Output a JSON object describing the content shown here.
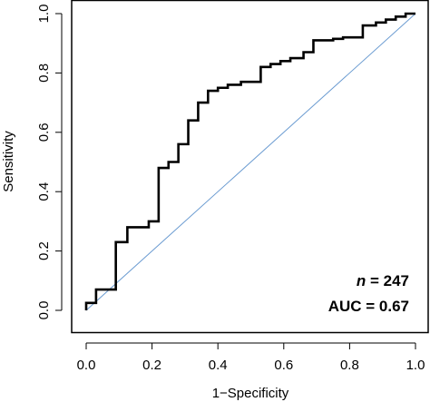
{
  "chart_data": {
    "type": "line",
    "title": "",
    "xlabel": "1−Specificity",
    "ylabel": "Sensitivity",
    "xlim": [
      0,
      1
    ],
    "ylim": [
      0,
      1
    ],
    "x_ticks": [
      0.0,
      0.2,
      0.4,
      0.6,
      0.8,
      1.0
    ],
    "x_tick_labels": [
      "0.0",
      "0.2",
      "0.4",
      "0.6",
      "0.8",
      "1.0"
    ],
    "y_ticks": [
      0.0,
      0.2,
      0.4,
      0.6,
      0.8,
      1.0
    ],
    "y_tick_labels": [
      "0.0",
      "0.2",
      "0.4",
      "0.6",
      "0.8",
      "1.0"
    ],
    "grid": false,
    "series": [
      {
        "color": "#000000",
        "x": [
          0.0,
          0.0,
          0.03,
          0.03,
          0.09,
          0.09,
          0.125,
          0.125,
          0.19,
          0.19,
          0.22,
          0.22,
          0.25,
          0.25,
          0.28,
          0.28,
          0.31,
          0.31,
          0.34,
          0.34,
          0.37,
          0.37,
          0.4,
          0.4,
          0.43,
          0.43,
          0.47,
          0.47,
          0.53,
          0.53,
          0.56,
          0.56,
          0.59,
          0.59,
          0.62,
          0.62,
          0.66,
          0.66,
          0.69,
          0.69,
          0.75,
          0.75,
          0.78,
          0.78,
          0.84,
          0.84,
          0.88,
          0.88,
          0.91,
          0.91,
          0.94,
          0.94,
          0.97,
          0.97,
          1.0
        ],
        "y": [
          0.0,
          0.025,
          0.025,
          0.07,
          0.07,
          0.23,
          0.23,
          0.28,
          0.28,
          0.3,
          0.3,
          0.48,
          0.48,
          0.5,
          0.5,
          0.56,
          0.56,
          0.64,
          0.64,
          0.7,
          0.7,
          0.74,
          0.74,
          0.75,
          0.75,
          0.76,
          0.76,
          0.77,
          0.77,
          0.82,
          0.82,
          0.83,
          0.83,
          0.84,
          0.84,
          0.85,
          0.85,
          0.87,
          0.87,
          0.91,
          0.91,
          0.915,
          0.915,
          0.92,
          0.92,
          0.96,
          0.96,
          0.97,
          0.97,
          0.98,
          0.98,
          0.99,
          0.99,
          1.0,
          1.0
        ]
      },
      {
        "color": "#6a9bd1",
        "x": [
          0,
          1
        ],
        "y": [
          0,
          1
        ]
      }
    ],
    "annotations": [
      {
        "italic": "n",
        "text": " = 247"
      },
      {
        "text": "AUC = 0.67"
      }
    ]
  }
}
